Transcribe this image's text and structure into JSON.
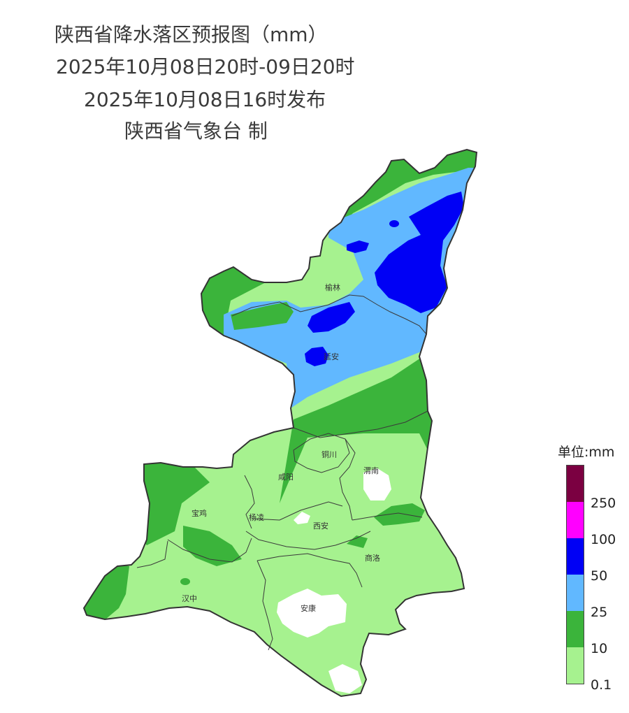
{
  "title": {
    "line1": "陕西省降水落区预报图（mm）",
    "line2": "2025年10月08日20时-09日20时",
    "line3": "2025年10月08日16时发布",
    "line4": "陕西省气象台 制"
  },
  "cities": [
    {
      "id": "yulin",
      "name": "榆林"
    },
    {
      "id": "yanan",
      "name": "延安"
    },
    {
      "id": "tongchuan",
      "name": "铜川"
    },
    {
      "id": "weinan",
      "name": "渭南"
    },
    {
      "id": "xianyang",
      "name": "咸阳"
    },
    {
      "id": "baoji",
      "name": "宝鸡"
    },
    {
      "id": "yangling",
      "name": "杨凌"
    },
    {
      "id": "xian",
      "name": "西安"
    },
    {
      "id": "shangluo",
      "name": "商洛"
    },
    {
      "id": "hanzhong",
      "name": "汉中"
    },
    {
      "id": "ankang",
      "name": "安康"
    }
  ],
  "legend": {
    "title": "单位:mm",
    "bins": [
      {
        "label": "",
        "color": "#7b0041"
      },
      {
        "label": "250",
        "color": "#ff00ff"
      },
      {
        "label": "100",
        "color": "#0000f5"
      },
      {
        "label": "50",
        "color": "#61b8ff"
      },
      {
        "label": "25",
        "color": "#3bb43b"
      },
      {
        "label": "10",
        "color": "#a6f28f"
      }
    ],
    "bottom_label": "0.1"
  },
  "colors": {
    "light_green": "#a6f28f",
    "green": "#3bb43b",
    "light_blue": "#61b8ff",
    "blue": "#0000f5",
    "magenta": "#ff00ff",
    "maroon": "#7b0041",
    "boundary": "#333333"
  }
}
